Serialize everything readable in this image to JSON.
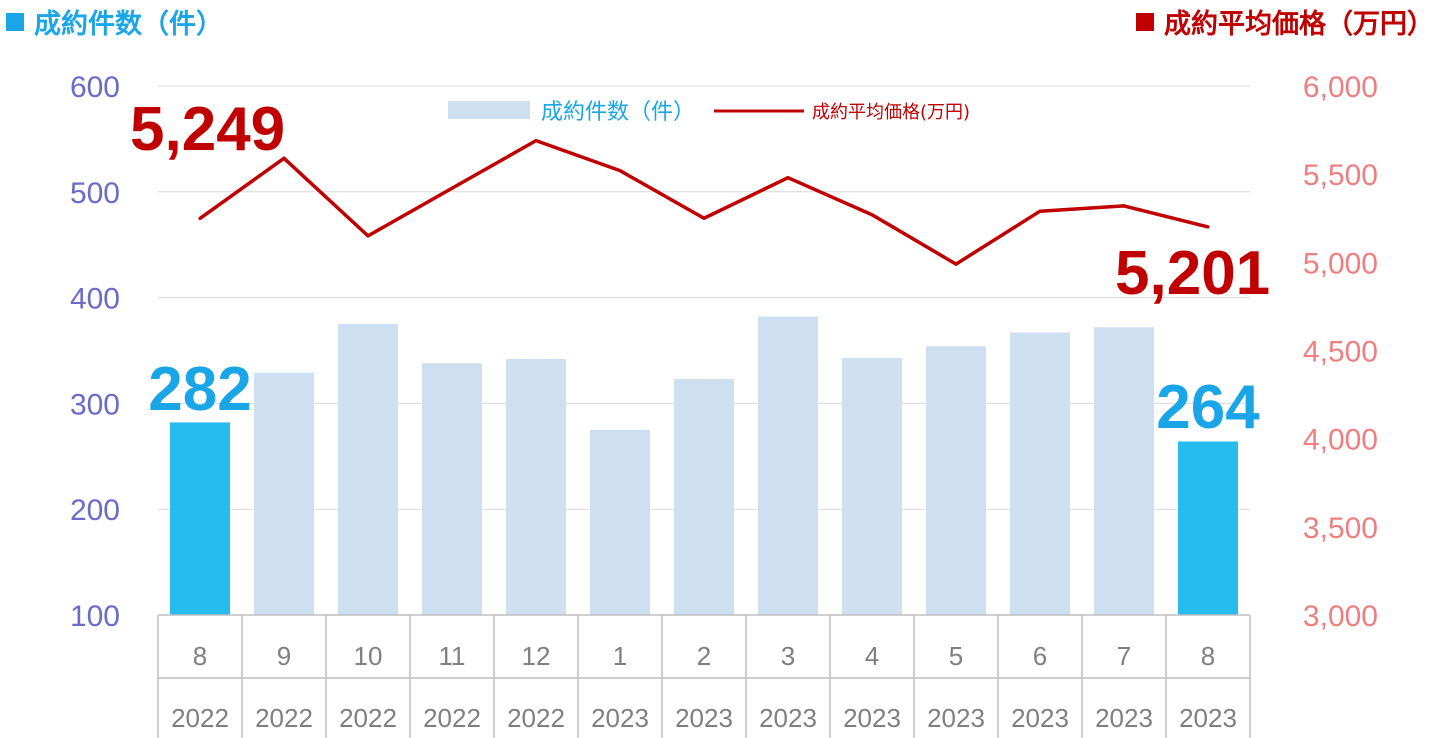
{
  "header": {
    "left_title": "成約件数（件）",
    "right_title": "成約平均価格（万円）",
    "left_color": "#1aa6e6",
    "right_color": "#c00000"
  },
  "chart_data": {
    "type": "bar",
    "combo": "bar+line",
    "categories": [
      {
        "month": "8",
        "year": "2022"
      },
      {
        "month": "9",
        "year": "2022"
      },
      {
        "month": "10",
        "year": "2022"
      },
      {
        "month": "11",
        "year": "2022"
      },
      {
        "month": "12",
        "year": "2022"
      },
      {
        "month": "1",
        "year": "2023"
      },
      {
        "month": "2",
        "year": "2023"
      },
      {
        "month": "3",
        "year": "2023"
      },
      {
        "month": "4",
        "year": "2023"
      },
      {
        "month": "5",
        "year": "2023"
      },
      {
        "month": "6",
        "year": "2023"
      },
      {
        "month": "7",
        "year": "2023"
      },
      {
        "month": "8",
        "year": "2023"
      }
    ],
    "series": [
      {
        "name": "成約件数（件）",
        "type": "bar",
        "axis": "left",
        "values": [
          282,
          329,
          375,
          338,
          342,
          275,
          323,
          382,
          343,
          354,
          367,
          372,
          264
        ],
        "color": "#cfdff2",
        "highlight_color": "#27bbee",
        "highlight_indices": [
          0,
          12
        ]
      },
      {
        "name": "成約平均価格(万円)",
        "type": "line",
        "axis": "right",
        "values": [
          5249,
          5590,
          5150,
          5420,
          5690,
          5520,
          5250,
          5480,
          5270,
          4990,
          5290,
          5320,
          5201
        ],
        "color": "#c00000"
      }
    ],
    "y_left": {
      "min": 100,
      "max": 600,
      "ticks": [
        "100",
        "200",
        "300",
        "400",
        "500",
        "600"
      ],
      "color": "#6b6bc9"
    },
    "y_right": {
      "min": 3000,
      "max": 6000,
      "ticks": [
        "3,000",
        "3,500",
        "4,000",
        "4,500",
        "5,000",
        "5,500",
        "6,000"
      ],
      "color": "#ef7f7f"
    },
    "annotations": {
      "first_count": "282",
      "last_count": "264",
      "first_price": "5,249",
      "last_price": "5,201"
    },
    "grid": "horizontal",
    "legend_position": "top-center"
  }
}
